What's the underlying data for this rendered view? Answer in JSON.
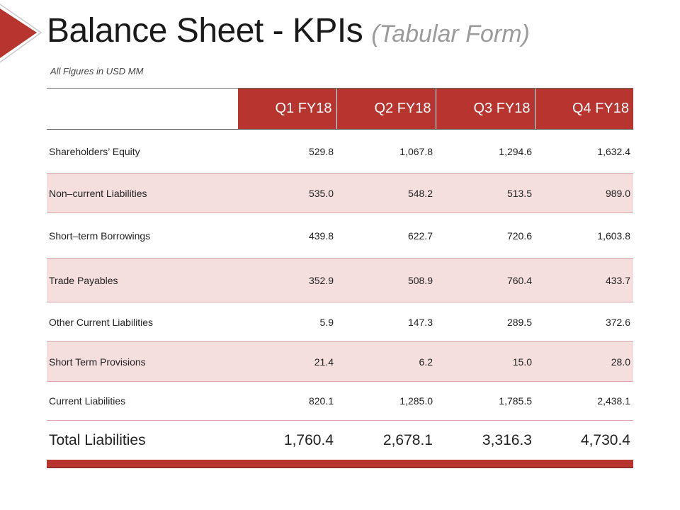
{
  "title": {
    "main": "Balance Sheet - KPIs",
    "sub": "(Tabular Form)"
  },
  "note": "All Figures in USD MM",
  "colors": {
    "accent": "#b8342f",
    "alt_row": "#f5dede"
  },
  "table": {
    "headers": [
      "Q1 FY18",
      "Q2 FY18",
      "Q3 FY18",
      "Q4 FY18"
    ],
    "rows": [
      {
        "label": "Shareholders’ Equity",
        "values": [
          "529.8",
          "1,067.8",
          "1,294.6",
          "1,632.4"
        ]
      },
      {
        "label": "Non–current Liabilities",
        "values": [
          "535.0",
          "548.2",
          "513.5",
          "989.0"
        ]
      },
      {
        "label": "Short–term Borrowings",
        "values": [
          "439.8",
          "622.7",
          "720.6",
          "1,603.8"
        ]
      },
      {
        "label": "Trade Payables",
        "values": [
          "352.9",
          "508.9",
          "760.4",
          "433.7"
        ]
      },
      {
        "label": "Other Current Liabilities",
        "values": [
          "5.9",
          "147.3",
          "289.5",
          "372.6"
        ]
      },
      {
        "label": "Short Term Provisions",
        "values": [
          "21.4",
          "6.2",
          "15.0",
          "28.0"
        ]
      },
      {
        "label": "Current Liabilities",
        "values": [
          "820.1",
          "1,285.0",
          "1,785.5",
          "2,438.1"
        ]
      }
    ],
    "total": {
      "label": "Total Liabilities",
      "values": [
        "1,760.4",
        "2,678.1",
        "3,316.3",
        "4,730.4"
      ]
    }
  }
}
